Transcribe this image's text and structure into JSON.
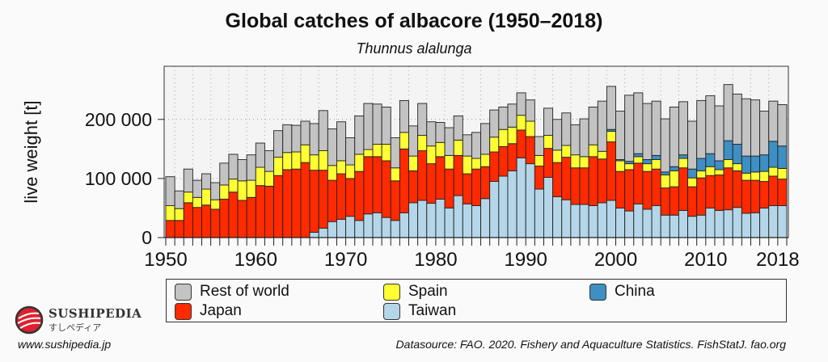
{
  "chart_data": {
    "type": "bar",
    "stacked": true,
    "title": "Global catches of albacore (1950–2018)",
    "subtitle": "Thunnus alalunga",
    "xlabel": "",
    "ylabel": "live weight [t]",
    "ylim": [
      0,
      290000
    ],
    "yticks": [
      0,
      100000,
      200000
    ],
    "ytick_labels": [
      "0",
      "100 000",
      "200 000"
    ],
    "xticks": [
      1950,
      1960,
      1970,
      1980,
      1990,
      2000,
      2010,
      2018
    ],
    "xtick_labels": [
      "1950",
      "1960",
      "1970",
      "1980",
      "1990",
      "2000",
      "2010",
      "2018"
    ],
    "grid": true,
    "legend_position": "bottom",
    "categories": [
      1950,
      1951,
      1952,
      1953,
      1954,
      1955,
      1956,
      1957,
      1958,
      1959,
      1960,
      1961,
      1962,
      1963,
      1964,
      1965,
      1966,
      1967,
      1968,
      1969,
      1970,
      1971,
      1972,
      1973,
      1974,
      1975,
      1976,
      1977,
      1978,
      1979,
      1980,
      1981,
      1982,
      1983,
      1984,
      1985,
      1986,
      1987,
      1988,
      1989,
      1990,
      1991,
      1992,
      1993,
      1994,
      1995,
      1996,
      1997,
      1998,
      1999,
      2000,
      2001,
      2002,
      2003,
      2004,
      2005,
      2006,
      2007,
      2008,
      2009,
      2010,
      2011,
      2012,
      2013,
      2014,
      2015,
      2016,
      2017,
      2018
    ],
    "series": [
      {
        "name": "Taiwan",
        "color": "#b4d6e8",
        "values": [
          0,
          0,
          0,
          0,
          0,
          0,
          0,
          0,
          0,
          0,
          0,
          0,
          0,
          0,
          0,
          0,
          9000,
          16000,
          27000,
          31000,
          36000,
          29000,
          40000,
          42000,
          34000,
          29000,
          42000,
          59000,
          63000,
          58000,
          65000,
          50000,
          71000,
          57000,
          54000,
          66000,
          95000,
          104000,
          113000,
          135000,
          125000,
          82000,
          102000,
          69000,
          64000,
          56000,
          56000,
          54000,
          59000,
          63000,
          50000,
          45000,
          57000,
          48000,
          54000,
          38000,
          38000,
          46000,
          36000,
          38000,
          50000,
          46000,
          47000,
          51000,
          41000,
          42000,
          50000,
          54000,
          54000
        ]
      },
      {
        "name": "Japan",
        "color": "#ff2a00",
        "values": [
          29000,
          29000,
          59000,
          51000,
          55000,
          48000,
          65000,
          77000,
          63000,
          68000,
          88000,
          87000,
          105000,
          115000,
          116000,
          127000,
          105000,
          98000,
          70000,
          77000,
          64000,
          83000,
          97000,
          95000,
          96000,
          67000,
          108000,
          54000,
          84000,
          67000,
          72000,
          66000,
          68000,
          51000,
          62000,
          54000,
          50000,
          50000,
          46000,
          47000,
          46000,
          39000,
          49000,
          58000,
          72000,
          62000,
          62000,
          83000,
          74000,
          99000,
          62000,
          70000,
          69000,
          64000,
          62000,
          46000,
          48000,
          72000,
          50000,
          63000,
          55000,
          60000,
          71000,
          62000,
          56000,
          55000,
          45000,
          50000,
          45000
        ]
      },
      {
        "name": "Spain",
        "color": "#ffff33",
        "values": [
          25000,
          20000,
          18000,
          17000,
          27000,
          16000,
          24000,
          22000,
          33000,
          29000,
          31000,
          25000,
          31000,
          29000,
          29000,
          30000,
          26000,
          33000,
          25000,
          22000,
          23000,
          29000,
          12000,
          21000,
          28000,
          22000,
          28000,
          25000,
          26000,
          30000,
          24000,
          23000,
          26000,
          30000,
          18000,
          21000,
          25000,
          29000,
          28000,
          25000,
          26000,
          18000,
          22000,
          21000,
          20000,
          22000,
          19000,
          20000,
          13000,
          18000,
          18000,
          10000,
          11000,
          13000,
          16000,
          22000,
          27000,
          16000,
          15000,
          12000,
          15000,
          9000,
          14000,
          12000,
          12000,
          14000,
          17000,
          15000,
          18000
        ]
      },
      {
        "name": "China",
        "color": "#3d8fc4",
        "values": [
          0,
          0,
          0,
          0,
          0,
          0,
          0,
          0,
          0,
          0,
          0,
          0,
          0,
          0,
          0,
          0,
          0,
          0,
          0,
          0,
          0,
          0,
          0,
          0,
          0,
          0,
          0,
          0,
          0,
          0,
          0,
          0,
          0,
          0,
          0,
          0,
          0,
          0,
          0,
          0,
          0,
          0,
          0,
          0,
          0,
          0,
          0,
          0,
          0,
          3000,
          2000,
          4000,
          5000,
          7000,
          7000,
          5000,
          7000,
          6000,
          15000,
          21000,
          22000,
          15000,
          32000,
          33000,
          29000,
          27000,
          28000,
          44000,
          38000
        ]
      },
      {
        "name": "Rest of world",
        "color": "#c3c3c3",
        "values": [
          49000,
          30000,
          39000,
          29000,
          26000,
          29000,
          37000,
          42000,
          36000,
          43000,
          41000,
          35000,
          45000,
          47000,
          45000,
          40000,
          53000,
          68000,
          62000,
          66000,
          46000,
          65000,
          78000,
          68000,
          63000,
          51000,
          54000,
          51000,
          54000,
          41000,
          34000,
          47000,
          41000,
          36000,
          44000,
          52000,
          46000,
          38000,
          39000,
          38000,
          36000,
          32000,
          46000,
          52000,
          55000,
          51000,
          64000,
          64000,
          85000,
          73000,
          82000,
          112000,
          103000,
          95000,
          92000,
          90000,
          101000,
          90000,
          81000,
          98000,
          98000,
          93000,
          95000,
          85000,
          97000,
          95000,
          74000,
          68000,
          70000
        ]
      }
    ],
    "legend_order": [
      "Rest of world",
      "Spain",
      "China",
      "Japan",
      "Taiwan"
    ]
  },
  "footer": {
    "logo_name": "SUSHIPEDIA",
    "logo_jp": "すしペディア",
    "url": "www.sushipedia.jp",
    "source": "Datasource: FAO. 2020. Fishery and Aquaculture Statistics. FishStatJ. fao.org"
  }
}
